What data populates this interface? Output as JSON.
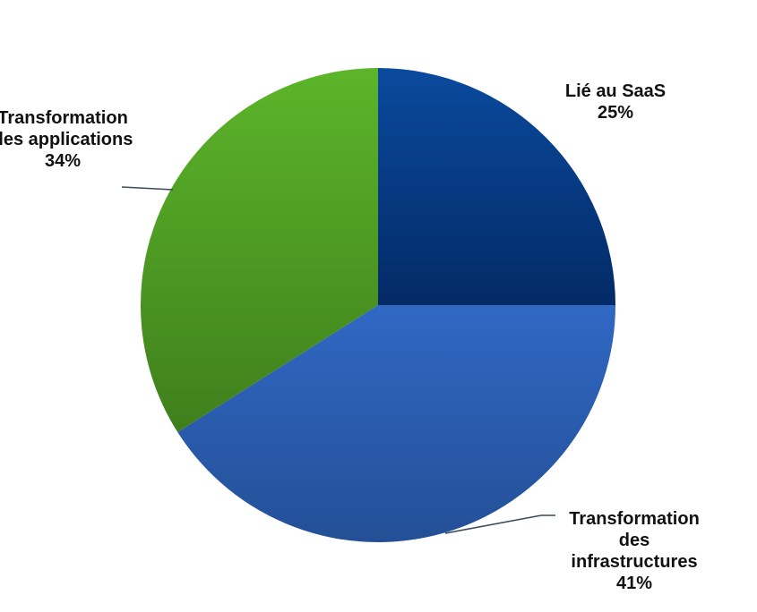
{
  "chart_data": {
    "type": "pie",
    "title": "",
    "start_angle_deg": 0,
    "direction": "clockwise",
    "slices": [
      {
        "name_lines": [
          "Lié au SaaS"
        ],
        "value": 25,
        "value_label": "25%",
        "color_light": "#0a4a9e",
        "color_dark": "#042a66"
      },
      {
        "name_lines": [
          "Transformation",
          "des",
          "infrastructures"
        ],
        "value": 41,
        "value_label": "41%",
        "color_light": "#3168c4",
        "color_dark": "#234f96"
      },
      {
        "name_lines": [
          "Transformation",
          "des applications"
        ],
        "value": 34,
        "value_label": "34%",
        "color_light": "#5cb52a",
        "color_dark": "#3f7f1c"
      }
    ],
    "legend": "none"
  }
}
